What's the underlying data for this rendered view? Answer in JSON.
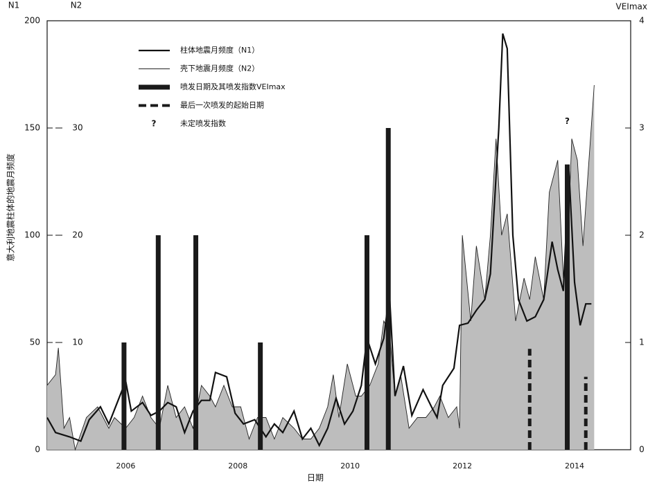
{
  "chart_data": {
    "type": "line",
    "x_label": "日期",
    "y_label": "意大利地震柱体的地震月频度",
    "y_axis_title": "N1",
    "n2_axis_title": "N2",
    "y2_axis_title": "VEImax",
    "xlim": [
      2004.6,
      2015.0
    ],
    "xticks": [
      2006,
      2008,
      2010,
      2012,
      2014
    ],
    "ylim": [
      0,
      200
    ],
    "yticks": [
      0,
      50,
      100,
      150,
      200
    ],
    "n2lim": [
      0,
      40
    ],
    "n2ticks": [
      10,
      20,
      30
    ],
    "y2lim": [
      0,
      4
    ],
    "y2ticks": [
      0,
      1,
      2,
      3,
      4
    ],
    "fill_color": "#bdbdbd",
    "series": [
      {
        "name": "柱体地震月频度（N1）",
        "style": "line",
        "color": "#111111",
        "x": [
          2004.6,
          2004.75,
          2005.0,
          2005.2,
          2005.35,
          2005.55,
          2005.7,
          2005.85,
          2006.0,
          2006.1,
          2006.3,
          2006.45,
          2006.6,
          2006.75,
          2006.9,
          2007.05,
          2007.2,
          2007.35,
          2007.5,
          2007.6,
          2007.8,
          2007.95,
          2008.1,
          2008.3,
          2008.5,
          2008.65,
          2008.8,
          2009.0,
          2009.15,
          2009.3,
          2009.45,
          2009.6,
          2009.75,
          2009.9,
          2010.05,
          2010.2,
          2010.3,
          2010.45,
          2010.6,
          2010.7,
          2010.8,
          2010.95,
          2011.1,
          2011.3,
          2011.45,
          2011.55,
          2011.65,
          2011.85,
          2011.95,
          2012.1,
          2012.25,
          2012.4,
          2012.5,
          2012.65,
          2012.72,
          2012.8,
          2012.9,
          2013.0,
          2013.15,
          2013.3,
          2013.45,
          2013.6,
          2013.7,
          2013.8,
          2013.9,
          2014.0,
          2014.1,
          2014.2,
          2014.3
        ],
        "values": [
          15,
          8,
          6,
          4,
          14,
          20,
          12,
          22,
          32,
          18,
          22,
          16,
          18,
          22,
          20,
          8,
          18,
          23,
          23,
          36,
          34,
          17,
          12,
          14,
          6,
          12,
          8,
          18,
          5,
          10,
          2,
          10,
          24,
          12,
          18,
          30,
          52,
          40,
          52,
          73,
          25,
          39,
          16,
          28,
          20,
          15,
          30,
          38,
          58,
          59,
          65,
          70,
          82,
          150,
          194,
          187,
          100,
          70,
          60,
          62,
          70,
          97,
          84,
          74,
          130,
          78,
          58,
          68,
          68
        ]
      },
      {
        "name": "壳下地震月频度（N2）",
        "style": "area",
        "axis": "n2",
        "color": "#222222",
        "x": [
          2004.6,
          2004.75,
          2004.8,
          2004.9,
          2005.0,
          2005.1,
          2005.3,
          2005.5,
          2005.7,
          2005.8,
          2006.0,
          2006.15,
          2006.3,
          2006.45,
          2006.6,
          2006.75,
          2006.9,
          2007.05,
          2007.2,
          2007.35,
          2007.5,
          2007.6,
          2007.75,
          2007.9,
          2008.05,
          2008.2,
          2008.35,
          2008.5,
          2008.65,
          2008.8,
          2009.0,
          2009.15,
          2009.3,
          2009.45,
          2009.6,
          2009.7,
          2009.8,
          2009.95,
          2010.1,
          2010.2,
          2010.35,
          2010.5,
          2010.6,
          2010.7,
          2010.8,
          2010.9,
          2011.05,
          2011.2,
          2011.35,
          2011.5,
          2011.6,
          2011.75,
          2011.9,
          2011.95,
          2012.0,
          2012.15,
          2012.25,
          2012.4,
          2012.5,
          2012.6,
          2012.7,
          2012.8,
          2012.95,
          2013.1,
          2013.2,
          2013.3,
          2013.45,
          2013.55,
          2013.7,
          2013.8,
          2013.9,
          2013.95,
          2014.05,
          2014.15,
          2014.35
        ],
        "values": [
          6,
          7,
          9.5,
          2,
          3,
          0,
          3,
          4,
          2,
          3,
          2,
          3,
          5,
          3,
          2,
          6,
          3,
          4,
          2,
          6,
          5,
          4,
          6,
          4,
          4,
          1,
          3,
          3,
          1,
          3,
          2,
          1,
          1,
          2,
          4,
          7,
          3,
          8,
          5,
          5,
          6,
          8,
          12,
          11,
          5,
          7,
          2,
          3,
          3,
          4,
          5,
          3,
          4,
          2,
          20,
          12,
          19,
          14,
          20,
          29,
          20,
          22,
          12,
          16,
          14,
          18,
          14,
          24,
          27,
          16,
          22,
          29,
          27,
          19,
          34
        ]
      },
      {
        "name": "喷发日期及其喷发指数VEImax",
        "style": "bar",
        "axis": "y2",
        "color": "#1a1a1a",
        "x": [
          2005.97,
          2006.58,
          2007.25,
          2008.4,
          2010.3,
          2010.68,
          2013.87
        ],
        "values": [
          1,
          2,
          2,
          1,
          2,
          3,
          2.66
        ]
      },
      {
        "name": "最后一次喷发的起始日期",
        "style": "dashed",
        "axis": "y2",
        "color": "#1a1a1a",
        "x": [
          2013.2,
          2014.2
        ],
        "values": [
          0.94,
          0.68
        ]
      },
      {
        "name": "未定喷发指数",
        "style": "marker",
        "marker": "?",
        "color": "#5a3a3a",
        "x": [
          2013.87
        ],
        "values": [
          3.06
        ],
        "axis": "y2"
      }
    ]
  }
}
